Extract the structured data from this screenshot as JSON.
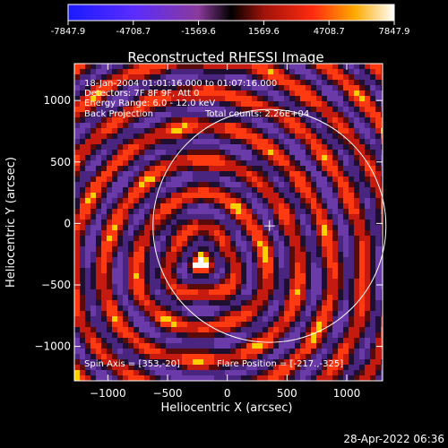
{
  "chart_data": {
    "type": "heatmap",
    "title": "Reconstructed RHESSI Image",
    "xlabel": "Heliocentric X (arcsec)",
    "ylabel": "Heliocentric Y (arcsec)",
    "xlim": [
      -1280,
      1300
    ],
    "ylim": [
      -1280,
      1300
    ],
    "xticks": [
      -1000,
      -500,
      0,
      500,
      1000
    ],
    "yticks": [
      -1000,
      -500,
      0,
      500,
      1000
    ],
    "colorbar": {
      "min": -7847.9,
      "max": 7847.9,
      "ticks": [
        "-7847.9",
        "-4708.7",
        "-1569.6",
        "1569.6",
        "4708.7",
        "7847.9"
      ]
    },
    "annotations": {
      "time_range": "18-Jan-2004 01:01:16.000 to 01:07:16.000",
      "detectors": "Detectors: 7F 8F 9F, Att 0",
      "energy_range": "Energy Range: 6.0 - 12.0 keV",
      "method": "Back Projection",
      "total_counts": "Total counts: 2.26E+04",
      "spin_axis": "Spin Axis = [353,-20]",
      "flare_position": "Flare Position = [-217.,-325]"
    },
    "spin_axis": [
      353,
      -20
    ],
    "flare_position": [
      -217,
      -325
    ],
    "solar_limb_radius": 975,
    "timestamp": "28-Apr-2022 06:36"
  }
}
